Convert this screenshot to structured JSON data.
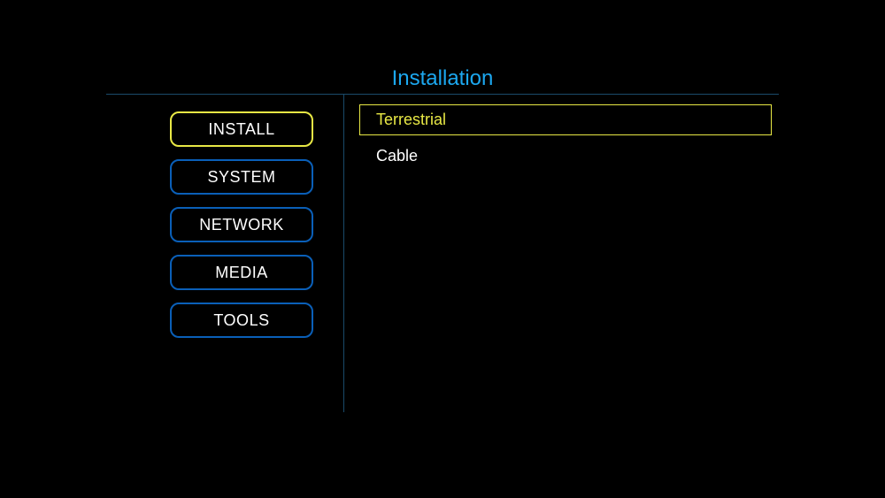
{
  "title": "Installation",
  "colors": {
    "background": "#000000",
    "title": "#1ca8f0",
    "divider": "#1a4a6a",
    "text": "#ffffff",
    "border_default": "#0a5fb8",
    "border_active": "#e8e845",
    "highlight_text": "#e8e845"
  },
  "sidebar": {
    "items": [
      {
        "label": "INSTALL",
        "active": true
      },
      {
        "label": "SYSTEM",
        "active": false
      },
      {
        "label": "NETWORK",
        "active": false
      },
      {
        "label": "MEDIA",
        "active": false
      },
      {
        "label": "TOOLS",
        "active": false
      }
    ]
  },
  "content": {
    "items": [
      {
        "label": "Terrestrial",
        "selected": true
      },
      {
        "label": "Cable",
        "selected": false
      }
    ]
  }
}
